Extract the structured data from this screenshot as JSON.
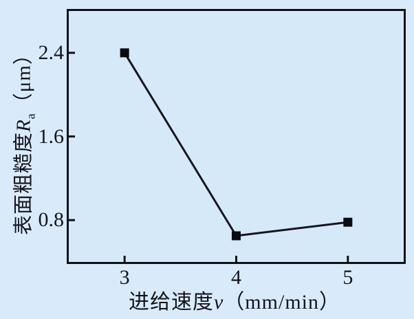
{
  "figure": {
    "background_color": "#d9ebfa",
    "plot_background_color": "#d6e9f9",
    "axis_color": "#101018",
    "line_color": "#15151d",
    "marker_color": "#0c0c12",
    "marker_shape": "square"
  },
  "chart_data": {
    "type": "line",
    "title": "",
    "x": [
      3,
      4,
      5
    ],
    "y": [
      2.4,
      0.65,
      0.78
    ],
    "xlim": [
      2.5,
      5.5
    ],
    "ylim": [
      0.4,
      2.8
    ],
    "xticks": [
      3,
      4,
      5
    ],
    "xtick_labels": [
      "3",
      "4",
      "5"
    ],
    "yticks": [
      0.8,
      1.6,
      2.4
    ],
    "ytick_labels": [
      "0.8",
      "1.6",
      "2.4"
    ],
    "grid": false,
    "legend": "none",
    "xlabel": {
      "prefix": "进给速度",
      "variable": "v",
      "unit": "（mm/min）"
    },
    "ylabel": {
      "prefix": "表面粗糙度",
      "variable": "R",
      "subscript": "a",
      "unit": "（μm）"
    }
  }
}
